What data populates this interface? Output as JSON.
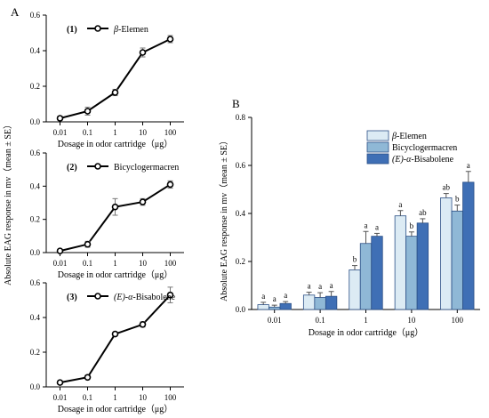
{
  "panel_labels": {
    "a": "A",
    "b": "B"
  },
  "line_legend_prefixes": [
    "(1)",
    "(2)",
    "(3)"
  ],
  "chart_data": [
    {
      "type": "line",
      "panel": "A1",
      "categories": [
        "0.01",
        "0.1",
        "1",
        "10",
        "100"
      ],
      "series": [
        {
          "name": "β-Elemen",
          "values": [
            0.02,
            0.06,
            0.165,
            0.39,
            0.465
          ],
          "errors": [
            0.012,
            0.022,
            0.018,
            0.025,
            0.02
          ]
        }
      ],
      "xlabel": "Dosage in odor cartridge（μg）",
      "ylabel": "",
      "ylim": [
        0,
        0.6
      ],
      "yticks": [
        "0.0",
        "0.2",
        "0.4",
        "0.6"
      ],
      "legend": "top-left"
    },
    {
      "type": "line",
      "panel": "A2",
      "categories": [
        "0.01",
        "0.1",
        "1",
        "10",
        "100"
      ],
      "series": [
        {
          "name": "Bicyclogermacren",
          "values": [
            0.01,
            0.05,
            0.275,
            0.305,
            0.41
          ],
          "errors": [
            0.008,
            0.018,
            0.05,
            0.02,
            0.022
          ]
        }
      ],
      "xlabel": "Dosage in odor cartridge（μg）",
      "ylabel": "Absolute EAG response in mv（mean ± SE）",
      "ylim": [
        0,
        0.6
      ],
      "yticks": [
        "0.0",
        "0.2",
        "0.4",
        "0.6"
      ],
      "legend": "top-left"
    },
    {
      "type": "line",
      "panel": "A3",
      "categories": [
        "0.01",
        "0.1",
        "1",
        "10",
        "100"
      ],
      "series": [
        {
          "name": "(E)-α-Bisabolene",
          "values": [
            0.025,
            0.055,
            0.305,
            0.36,
            0.53
          ],
          "errors": [
            0.008,
            0.012,
            0.01,
            0.015,
            0.045
          ]
        }
      ],
      "xlabel": "Dosage in odor cartridge（μg）",
      "ylabel": "",
      "ylim": [
        0,
        0.6
      ],
      "yticks": [
        "0.0",
        "0.2",
        "0.4",
        "0.6"
      ],
      "legend": "top-left"
    },
    {
      "type": "bar",
      "panel": "B",
      "categories": [
        "0.01",
        "0.1",
        "1",
        "10",
        "100"
      ],
      "series": [
        {
          "name": "β-Elemen",
          "values": [
            0.02,
            0.06,
            0.165,
            0.39,
            0.465
          ],
          "errors": [
            0.01,
            0.012,
            0.018,
            0.022,
            0.018
          ],
          "labels": [
            "a",
            "a",
            "b",
            "a",
            "ab"
          ]
        },
        {
          "name": "Bicyclogermacren",
          "values": [
            0.01,
            0.05,
            0.275,
            0.305,
            0.41
          ],
          "errors": [
            0.008,
            0.02,
            0.05,
            0.018,
            0.025
          ],
          "labels": [
            "a",
            "a",
            "a",
            "b",
            "b"
          ]
        },
        {
          "name": "(E)-α-Bisabolene",
          "values": [
            0.025,
            0.055,
            0.305,
            0.36,
            0.53
          ],
          "errors": [
            0.008,
            0.02,
            0.012,
            0.018,
            0.045
          ],
          "labels": [
            "a",
            "a",
            "a",
            "ab",
            "a"
          ]
        }
      ],
      "xlabel": "Dosage in odor cartridge（μg）",
      "ylabel": "Absolute EAG response in mv（mean ± SE）",
      "ylim": [
        0,
        0.8
      ],
      "yticks": [
        "0.0",
        "0.2",
        "0.4",
        "0.6",
        "0.8"
      ],
      "legend": "top-left",
      "colors": [
        "#dcebf4",
        "#8fb8d6",
        "#3f6fb5"
      ]
    }
  ]
}
